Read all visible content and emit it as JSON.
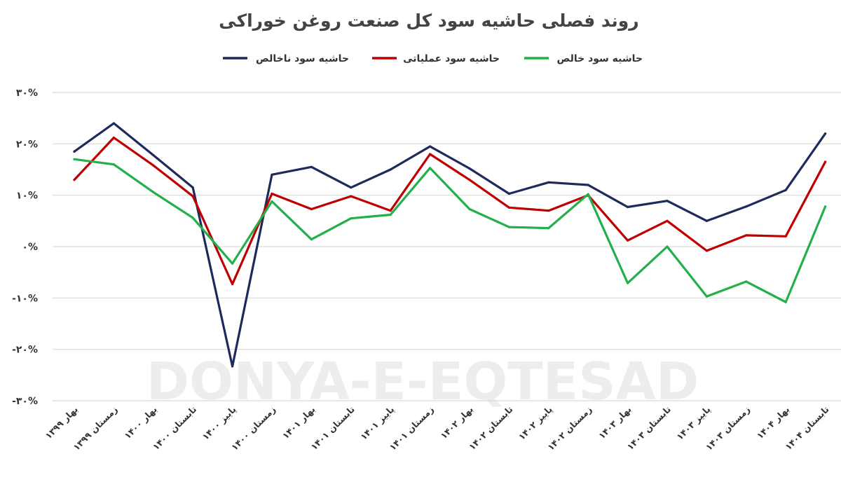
{
  "chart_data": {
    "type": "line",
    "title": "روند فصلی حاشیه سود کل صنعت روغن خوراکی",
    "watermark": "DONYA-E-EQTESAD",
    "x": [
      "بهار ۱۳۹۹",
      "زمستان ۱۳۹۹",
      "بهار ۱۴۰۰",
      "تابستان ۱۴۰۰",
      "پاییز ۱۴۰۰",
      "زمستان ۱۴۰۰",
      "بهار ۱۴۰۱",
      "تابستان ۱۴۰۱",
      "پاییز ۱۴۰۱",
      "زمستان ۱۴۰۱",
      "بهار ۱۴۰۲",
      "تابستان ۱۴۰۲",
      "پاییز ۱۴۰۲",
      "زمستان ۱۴۰۲",
      "بهار ۱۴۰۳",
      "تابستان ۱۴۰۳",
      "پاییز ۱۴۰۳",
      "زمستان ۱۴۰۳",
      "بهار ۱۴۰۴",
      "تابستان ۱۴۰۴"
    ],
    "series": [
      {
        "name": "حاشیه سود ناخالص",
        "color": "#1f2a5c",
        "values": [
          18.5,
          24.0,
          17.8,
          11.5,
          -23.3,
          14.0,
          15.5,
          11.5,
          15.0,
          19.5,
          15.2,
          10.3,
          12.5,
          12.0,
          7.7,
          8.9,
          5.0,
          7.8,
          11.0,
          22.0
        ]
      },
      {
        "name": "حاشیه سود عملیاتی",
        "color": "#c00000",
        "values": [
          13.0,
          21.2,
          15.8,
          9.8,
          -7.3,
          10.3,
          7.3,
          9.8,
          7.0,
          18.0,
          13.0,
          7.6,
          7.0,
          10.0,
          1.2,
          5.0,
          -0.8,
          2.2,
          2.0,
          16.5
        ]
      },
      {
        "name": "حاشیه سود خالص",
        "color": "#22b04b",
        "values": [
          17.0,
          16.0,
          10.6,
          5.6,
          -3.3,
          8.8,
          1.4,
          5.5,
          6.2,
          15.3,
          7.3,
          3.8,
          3.6,
          10.2,
          -7.1,
          0.0,
          -9.7,
          -6.8,
          -10.8,
          7.8
        ]
      }
    ],
    "yticks": [
      30,
      20,
      10,
      0,
      -10,
      -20,
      -30
    ],
    "ytick_labels": [
      "۳۰%",
      "۲۰%",
      "۱۰%",
      "۰%",
      "-۱۰%",
      "-۲۰%",
      "-۳۰%"
    ],
    "ylim": [
      -30,
      30
    ],
    "grid": true,
    "legend_position": "top"
  }
}
